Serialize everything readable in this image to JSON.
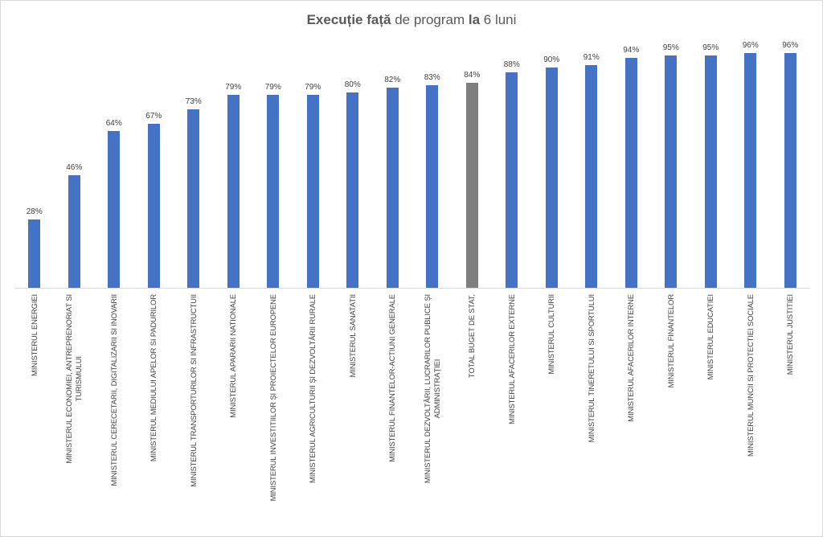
{
  "chart_data": {
    "type": "bar",
    "title": {
      "p1": "Execuție față",
      "p2": " de program ",
      "p3": "la",
      "p4": " 6 luni"
    },
    "categories": [
      "MINISTERUL ENERGIEI",
      "MINISTERUL ECONOMIEI, ANTREPRENORIAT SI\nTURISMULUI",
      "MINISTERUL CERECETARII, DIGITALIZARII SI INOVARII",
      "MINISTERUL MEDIULUI APELOR SI PADURILOR",
      "MINISTERUL TRANSPORTURILOR SI INFRASTRUCTUII",
      "MINISTERUL APARARII NATIONALE",
      "MINISTERUL INVESTITIILOR ȘI PROIECTELOR  EUROPENE",
      "MINISTERUL AGRICULTURII ȘI DEZVOLTĂRII RURALE",
      "MINISTERUL SANATATII",
      "MINISTERUL FINANTELOR-ACTIUNI GENERALE",
      "MINISTERUL DEZVOLTĂRII, LUCRARILOR PUBLICE ȘI\nADMINISTRAȚIEI",
      "TOTAL BUGET DE STAT,",
      "MINISTERUL AFACERILOR EXTERNE",
      "MINISTERUL CULTURII",
      "MINISTERUL TINERETULUI SI SPORTULUI",
      "MINISTERUL AFACERILOR INTERNE",
      "MINISTERUL FINANTELOR",
      "MINISTERUL EDUCATIEI",
      "MINISTERUL MUNCII SI PROTECTIEI SOCIALE",
      "MINISTERUL JUSTITIEI"
    ],
    "values": [
      28,
      46,
      64,
      67,
      73,
      79,
      79,
      79,
      80,
      82,
      83,
      84,
      88,
      90,
      91,
      94,
      95,
      95,
      96,
      96
    ],
    "data_labels": [
      "28%",
      "46%",
      "64%",
      "67%",
      "73%",
      "79%",
      "79%",
      "79%",
      "80%",
      "82%",
      "83%",
      "84%",
      "88%",
      "90%",
      "91%",
      "94%",
      "95%",
      "95%",
      "96%",
      "96%"
    ],
    "highlight_index": 11,
    "colors": {
      "bar": "#4472c4",
      "highlight": "#7f7f7f"
    },
    "unit": "%",
    "ylim": [
      0,
      100
    ],
    "grid": false,
    "legend": "none",
    "xlabel": "",
    "ylabel": ""
  }
}
